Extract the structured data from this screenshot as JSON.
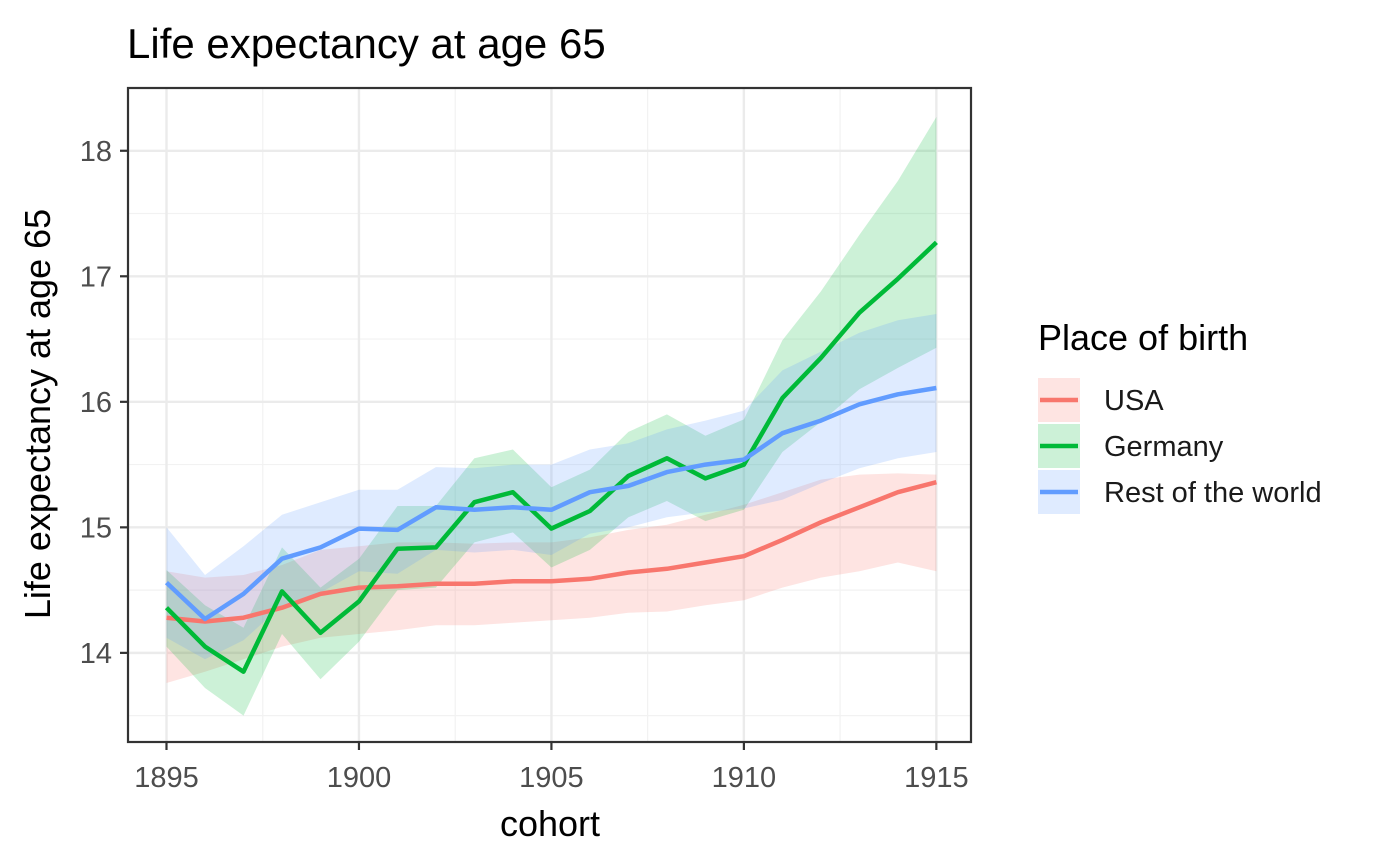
{
  "chart_data": {
    "type": "line",
    "title": "Life expectancy at age 65",
    "xlabel": "cohort",
    "ylabel": "Life expectancy at age 65",
    "xlim": [
      1894.0,
      1915.9
    ],
    "ylim": [
      13.29,
      18.5
    ],
    "x_ticks": [
      1895,
      1900,
      1905,
      1910,
      1915
    ],
    "y_ticks": [
      14,
      15,
      16,
      17,
      18
    ],
    "x_tick_labels": [
      "1895",
      "1900",
      "1905",
      "1910",
      "1915"
    ],
    "y_tick_labels": [
      "14",
      "15",
      "16",
      "17",
      "18"
    ],
    "grid": true,
    "ribbons": true,
    "legend_title": "Place of birth",
    "legend_position": "right",
    "x": [
      1895,
      1896,
      1897,
      1898,
      1899,
      1900,
      1901,
      1902,
      1903,
      1904,
      1905,
      1906,
      1907,
      1908,
      1909,
      1910,
      1911,
      1912,
      1913,
      1914,
      1915
    ],
    "series": [
      {
        "name": "USA",
        "color": "#F8766D",
        "values": [
          14.28,
          14.25,
          14.28,
          14.36,
          14.47,
          14.52,
          14.53,
          14.55,
          14.55,
          14.57,
          14.57,
          14.59,
          14.64,
          14.67,
          14.72,
          14.77,
          14.9,
          15.04,
          15.16,
          15.28,
          15.36
        ],
        "lower": [
          13.76,
          13.85,
          13.95,
          14.05,
          14.12,
          14.15,
          14.18,
          14.22,
          14.22,
          14.24,
          14.26,
          14.28,
          14.32,
          14.33,
          14.38,
          14.42,
          14.52,
          14.6,
          14.65,
          14.72,
          14.65
        ],
        "upper": [
          14.65,
          14.6,
          14.62,
          14.7,
          14.82,
          14.85,
          14.88,
          14.88,
          14.87,
          14.88,
          14.88,
          14.92,
          14.98,
          15.02,
          15.1,
          15.18,
          15.28,
          15.38,
          15.42,
          15.43,
          15.42
        ]
      },
      {
        "name": "Germany",
        "color": "#00BA38",
        "values": [
          14.36,
          14.05,
          13.85,
          14.49,
          14.16,
          14.41,
          14.83,
          14.84,
          15.2,
          15.28,
          14.99,
          15.13,
          15.41,
          15.55,
          15.39,
          15.5,
          16.03,
          16.35,
          16.71,
          16.98,
          17.27
        ],
        "lower": [
          14.05,
          13.72,
          13.5,
          14.15,
          13.79,
          14.09,
          14.5,
          14.52,
          14.88,
          14.96,
          14.68,
          14.82,
          15.08,
          15.21,
          15.05,
          15.14,
          15.6,
          15.84,
          16.1,
          16.27,
          16.43
        ],
        "upper": [
          14.66,
          14.38,
          14.2,
          14.84,
          14.52,
          14.75,
          15.17,
          15.17,
          15.55,
          15.62,
          15.32,
          15.46,
          15.76,
          15.9,
          15.73,
          15.86,
          16.49,
          16.88,
          17.33,
          17.76,
          18.27
        ]
      },
      {
        "name": "Rest of the world",
        "color": "#619CFF",
        "values": [
          14.56,
          14.27,
          14.47,
          14.75,
          14.84,
          14.99,
          14.98,
          15.16,
          15.14,
          15.16,
          15.14,
          15.28,
          15.33,
          15.44,
          15.5,
          15.54,
          15.75,
          15.85,
          15.98,
          16.06,
          16.11
        ],
        "lower": [
          14.12,
          13.95,
          14.1,
          14.38,
          14.48,
          14.65,
          14.63,
          14.82,
          14.8,
          14.82,
          14.78,
          14.95,
          15.0,
          15.08,
          15.12,
          15.15,
          15.22,
          15.35,
          15.47,
          15.55,
          15.6
        ],
        "upper": [
          15.0,
          14.62,
          14.85,
          15.1,
          15.2,
          15.3,
          15.3,
          15.48,
          15.47,
          15.5,
          15.5,
          15.62,
          15.67,
          15.78,
          15.85,
          15.93,
          16.25,
          16.4,
          16.55,
          16.65,
          16.7
        ]
      }
    ]
  }
}
